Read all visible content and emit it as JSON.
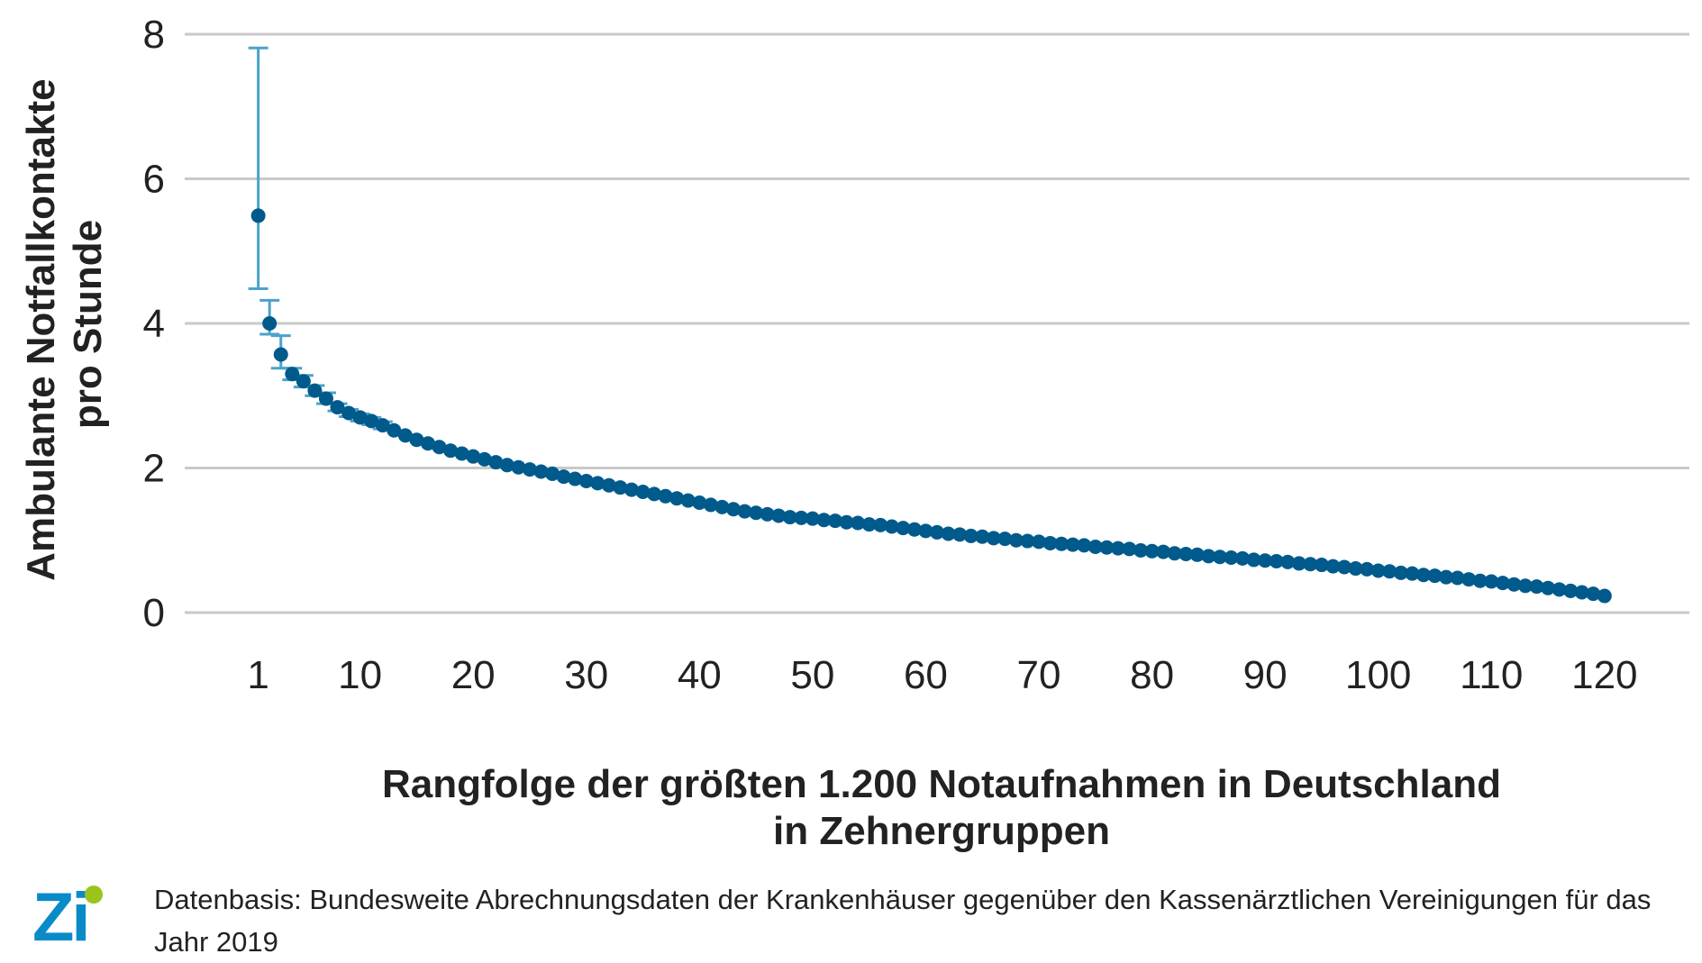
{
  "chart_data": {
    "type": "scatter",
    "xlabel_lines": [
      "Rangfolge der größten 1.200 Notaufnahmen in Deutschland",
      "in Zehnergruppen"
    ],
    "ylabel_lines": [
      "Ambulante Notfallkontakte",
      "pro Stunde"
    ],
    "ylim": [
      0,
      8
    ],
    "y_ticks": [
      "0",
      "2",
      "4",
      "6",
      "8"
    ],
    "xlim": [
      -5.5,
      127.5
    ],
    "x_ticks": [
      "1",
      "10",
      "20",
      "30",
      "40",
      "50",
      "60",
      "70",
      "80",
      "90",
      "100",
      "110",
      "120"
    ],
    "grid": true,
    "point_color": "#005a8c",
    "errorbar_color": "#4aa3cc",
    "x": [
      1,
      2,
      3,
      4,
      5,
      6,
      7,
      8,
      9,
      10,
      11,
      12,
      13,
      14,
      15,
      16,
      17,
      18,
      19,
      20,
      21,
      22,
      23,
      24,
      25,
      26,
      27,
      28,
      29,
      30,
      31,
      32,
      33,
      34,
      35,
      36,
      37,
      38,
      39,
      40,
      41,
      42,
      43,
      44,
      45,
      46,
      47,
      48,
      49,
      50,
      51,
      52,
      53,
      54,
      55,
      56,
      57,
      58,
      59,
      60,
      61,
      62,
      63,
      64,
      65,
      66,
      67,
      68,
      69,
      70,
      71,
      72,
      73,
      74,
      75,
      76,
      77,
      78,
      79,
      80,
      81,
      82,
      83,
      84,
      85,
      86,
      87,
      88,
      89,
      90,
      91,
      92,
      93,
      94,
      95,
      96,
      97,
      98,
      99,
      100,
      101,
      102,
      103,
      104,
      105,
      106,
      107,
      108,
      109,
      110,
      111,
      112,
      113,
      114,
      115,
      116,
      117,
      118,
      119,
      120
    ],
    "y": [
      5.49,
      4.0,
      3.57,
      3.3,
      3.2,
      3.07,
      2.96,
      2.84,
      2.76,
      2.7,
      2.65,
      2.59,
      2.52,
      2.45,
      2.39,
      2.34,
      2.29,
      2.24,
      2.2,
      2.16,
      2.12,
      2.08,
      2.04,
      2.01,
      1.98,
      1.95,
      1.92,
      1.88,
      1.85,
      1.82,
      1.79,
      1.76,
      1.73,
      1.7,
      1.67,
      1.64,
      1.61,
      1.58,
      1.55,
      1.52,
      1.49,
      1.46,
      1.43,
      1.4,
      1.38,
      1.36,
      1.34,
      1.32,
      1.31,
      1.3,
      1.28,
      1.27,
      1.25,
      1.24,
      1.22,
      1.21,
      1.19,
      1.17,
      1.15,
      1.13,
      1.11,
      1.09,
      1.08,
      1.06,
      1.05,
      1.03,
      1.02,
      1.0,
      0.99,
      0.98,
      0.96,
      0.95,
      0.94,
      0.93,
      0.91,
      0.9,
      0.89,
      0.88,
      0.86,
      0.85,
      0.84,
      0.82,
      0.81,
      0.8,
      0.78,
      0.77,
      0.76,
      0.75,
      0.73,
      0.72,
      0.71,
      0.7,
      0.68,
      0.67,
      0.66,
      0.64,
      0.63,
      0.61,
      0.6,
      0.58,
      0.57,
      0.55,
      0.54,
      0.52,
      0.51,
      0.49,
      0.48,
      0.46,
      0.44,
      0.43,
      0.41,
      0.39,
      0.37,
      0.36,
      0.34,
      0.32,
      0.3,
      0.28,
      0.26,
      0.23
    ],
    "error_bars": [
      {
        "x": 1,
        "low": 4.48,
        "high": 7.81
      },
      {
        "x": 2,
        "low": 3.85,
        "high": 4.32
      },
      {
        "x": 3,
        "low": 3.38,
        "high": 3.83
      },
      {
        "x": 4,
        "low": 3.22,
        "high": 3.38
      },
      {
        "x": 5,
        "low": 3.12,
        "high": 3.28
      },
      {
        "x": 6,
        "low": 3.0,
        "high": 3.14
      },
      {
        "x": 7,
        "low": 2.89,
        "high": 3.04
      },
      {
        "x": 8,
        "low": 2.79,
        "high": 2.89
      },
      {
        "x": 9,
        "low": 2.71,
        "high": 2.81
      },
      {
        "x": 10,
        "low": 2.65,
        "high": 2.75
      },
      {
        "x": 11,
        "low": 2.6,
        "high": 2.7
      },
      {
        "x": 12,
        "low": 2.54,
        "high": 2.64
      }
    ]
  },
  "source_note": "Datenbasis: Bundesweite Abrechnungsdaten der Krankenhäuser gegenüber den Kassenärztlichen Vereinigungen für das Jahr 2019",
  "logo_text": "Zi",
  "logo_colors": {
    "letters": "#0a8bc8",
    "dot": "#9bc31c"
  }
}
